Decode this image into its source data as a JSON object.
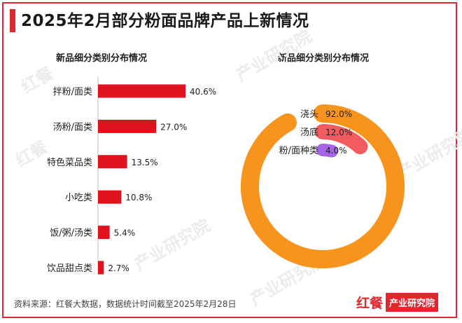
{
  "title": "2025年2月部分粉面品牌产品上新情况",
  "watermark": {
    "brand": "红餐",
    "text": "产业研究院"
  },
  "source": "资料来源：红餐大数据，数据统计时间截至2025年2月28日",
  "logo": {
    "red_text": "红餐",
    "box_text": "产业研究院"
  },
  "colors": {
    "bar": "#e0121e",
    "orange": "#f7941d",
    "red": "#f25c61",
    "purple": "#a764e8",
    "accent": "#e0282e"
  },
  "chart_data": [
    {
      "type": "bar",
      "orientation": "horizontal",
      "title": "新品细分类别分布情况",
      "categories": [
        "拌粉/面类",
        "汤粉/面类",
        "特色菜品类",
        "小吃类",
        "饭/粥/汤类",
        "饮品甜点类"
      ],
      "values": [
        40.6,
        27.0,
        13.5,
        10.8,
        5.4,
        2.7
      ],
      "labels": [
        "40.6%",
        "27.0%",
        "13.5%",
        "10.8%",
        "5.4%",
        "2.7%"
      ],
      "unit": "%",
      "xlim": [
        0,
        40.6
      ],
      "grid": false
    },
    {
      "type": "pie",
      "style": "radial-rings",
      "title": "新品细分类别分布情况",
      "categories": [
        "浇头",
        "汤底",
        "粉/面种类"
      ],
      "values": [
        92.0,
        12.0,
        4.0
      ],
      "labels": [
        "92.0%",
        "12.0%",
        "4.0%"
      ],
      "colors": [
        "#f7941d",
        "#f25c61",
        "#a764e8"
      ],
      "unit": "%"
    }
  ]
}
